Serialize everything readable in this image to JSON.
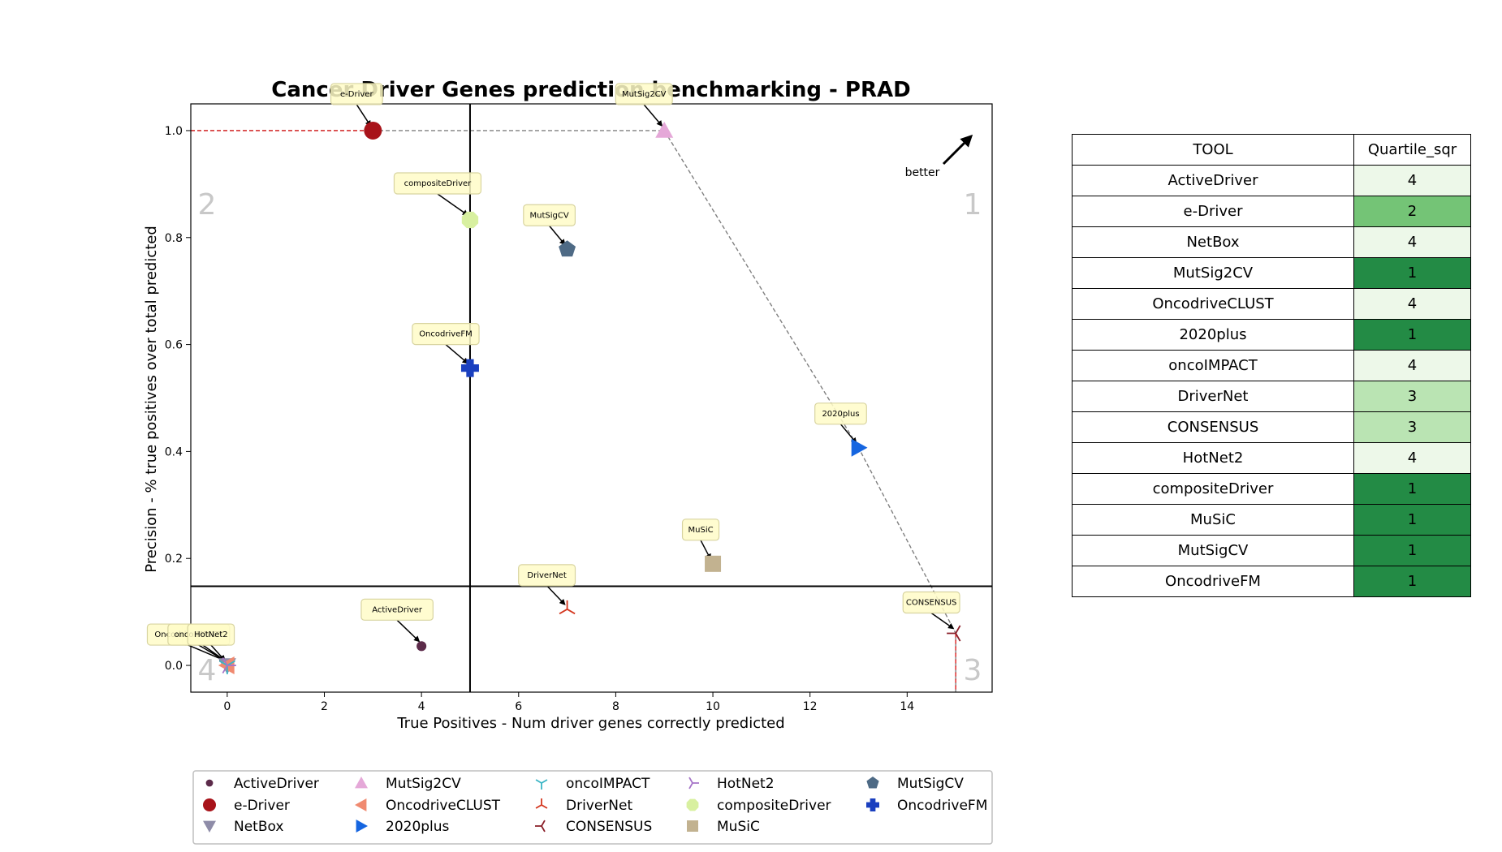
{
  "chart_data": {
    "type": "scatter",
    "title": "Cancer Driver Genes prediction benchmarking - PRAD",
    "xlabel": "True Positives - Num driver genes correctly predicted",
    "ylabel": "Precision - % true positives over total predicted",
    "xlim": [
      -0.75,
      15.75
    ],
    "ylim": [
      -0.05,
      1.05
    ],
    "xticks": [
      0,
      2,
      4,
      6,
      8,
      10,
      12,
      14
    ],
    "yticks": [
      0.0,
      0.2,
      0.4,
      0.6,
      0.8,
      1.0
    ],
    "quartile_lines": {
      "x": 5,
      "y": 0.148
    },
    "quadrant_labels": [
      "1",
      "2",
      "3",
      "4"
    ],
    "better_label": "better",
    "grid": false,
    "legend_position": "bottom",
    "points": [
      {
        "name": "ActiveDriver",
        "x": 4,
        "y": 0.036,
        "color": "#5c2b4a",
        "marker": "circle-small"
      },
      {
        "name": "e-Driver",
        "x": 3,
        "y": 1.0,
        "color": "#a8131a",
        "marker": "circle"
      },
      {
        "name": "NetBox",
        "x": 0,
        "y": 0.0,
        "color": "#8e8ca8",
        "marker": "triangle-down"
      },
      {
        "name": "MutSig2CV",
        "x": 9,
        "y": 1.0,
        "color": "#e5a8d8",
        "marker": "triangle-up"
      },
      {
        "name": "OncodriveCLUST",
        "x": 0,
        "y": 0.0,
        "color": "#f08a70",
        "marker": "triangle-left"
      },
      {
        "name": "2020plus",
        "x": 13,
        "y": 0.407,
        "color": "#1565e0",
        "marker": "triangle-right"
      },
      {
        "name": "oncoIMPACT",
        "x": 0,
        "y": 0.0,
        "color": "#3ab5c5",
        "marker": "tri-down"
      },
      {
        "name": "DriverNet",
        "x": 7,
        "y": 0.105,
        "color": "#d4361e",
        "marker": "tri-up"
      },
      {
        "name": "CONSENSUS",
        "x": 15,
        "y": 0.06,
        "color": "#8a1e28",
        "marker": "tri-left"
      },
      {
        "name": "HotNet2",
        "x": 0,
        "y": 0.0,
        "color": "#a675c8",
        "marker": "tri-right"
      },
      {
        "name": "compositeDriver",
        "x": 5,
        "y": 0.833,
        "color": "#d8f0a0",
        "marker": "octagon"
      },
      {
        "name": "MuSiC",
        "x": 10,
        "y": 0.19,
        "color": "#c2b290",
        "marker": "square"
      },
      {
        "name": "MutSigCV",
        "x": 7,
        "y": 0.778,
        "color": "#4e6a85",
        "marker": "pentagon"
      },
      {
        "name": "OncodriveFM",
        "x": 5,
        "y": 0.556,
        "color": "#1a3fbf",
        "marker": "plus"
      }
    ],
    "pareto_front": [
      {
        "x": 3,
        "y": 1.0
      },
      {
        "x": 9,
        "y": 1.0
      },
      {
        "x": 13,
        "y": 0.407
      },
      {
        "x": 15,
        "y": 0.06
      }
    ]
  },
  "table": {
    "headers": [
      "TOOL",
      "Quartile_sqr"
    ],
    "rows": [
      {
        "tool": "ActiveDriver",
        "quartile": "4",
        "color": "#edf8e9"
      },
      {
        "tool": "e-Driver",
        "quartile": "2",
        "color": "#74c476"
      },
      {
        "tool": "NetBox",
        "quartile": "4",
        "color": "#edf8e9"
      },
      {
        "tool": "MutSig2CV",
        "quartile": "1",
        "color": "#238b45"
      },
      {
        "tool": "OncodriveCLUST",
        "quartile": "4",
        "color": "#edf8e9"
      },
      {
        "tool": "2020plus",
        "quartile": "1",
        "color": "#238b45"
      },
      {
        "tool": "oncoIMPACT",
        "quartile": "4",
        "color": "#edf8e9"
      },
      {
        "tool": "DriverNet",
        "quartile": "3",
        "color": "#bae4b3"
      },
      {
        "tool": "CONSENSUS",
        "quartile": "3",
        "color": "#bae4b3"
      },
      {
        "tool": "HotNet2",
        "quartile": "4",
        "color": "#edf8e9"
      },
      {
        "tool": "compositeDriver",
        "quartile": "1",
        "color": "#238b45"
      },
      {
        "tool": "MuSiC",
        "quartile": "1",
        "color": "#238b45"
      },
      {
        "tool": "MutSigCV",
        "quartile": "1",
        "color": "#238b45"
      },
      {
        "tool": "OncodriveFM",
        "quartile": "1",
        "color": "#238b45"
      }
    ]
  }
}
